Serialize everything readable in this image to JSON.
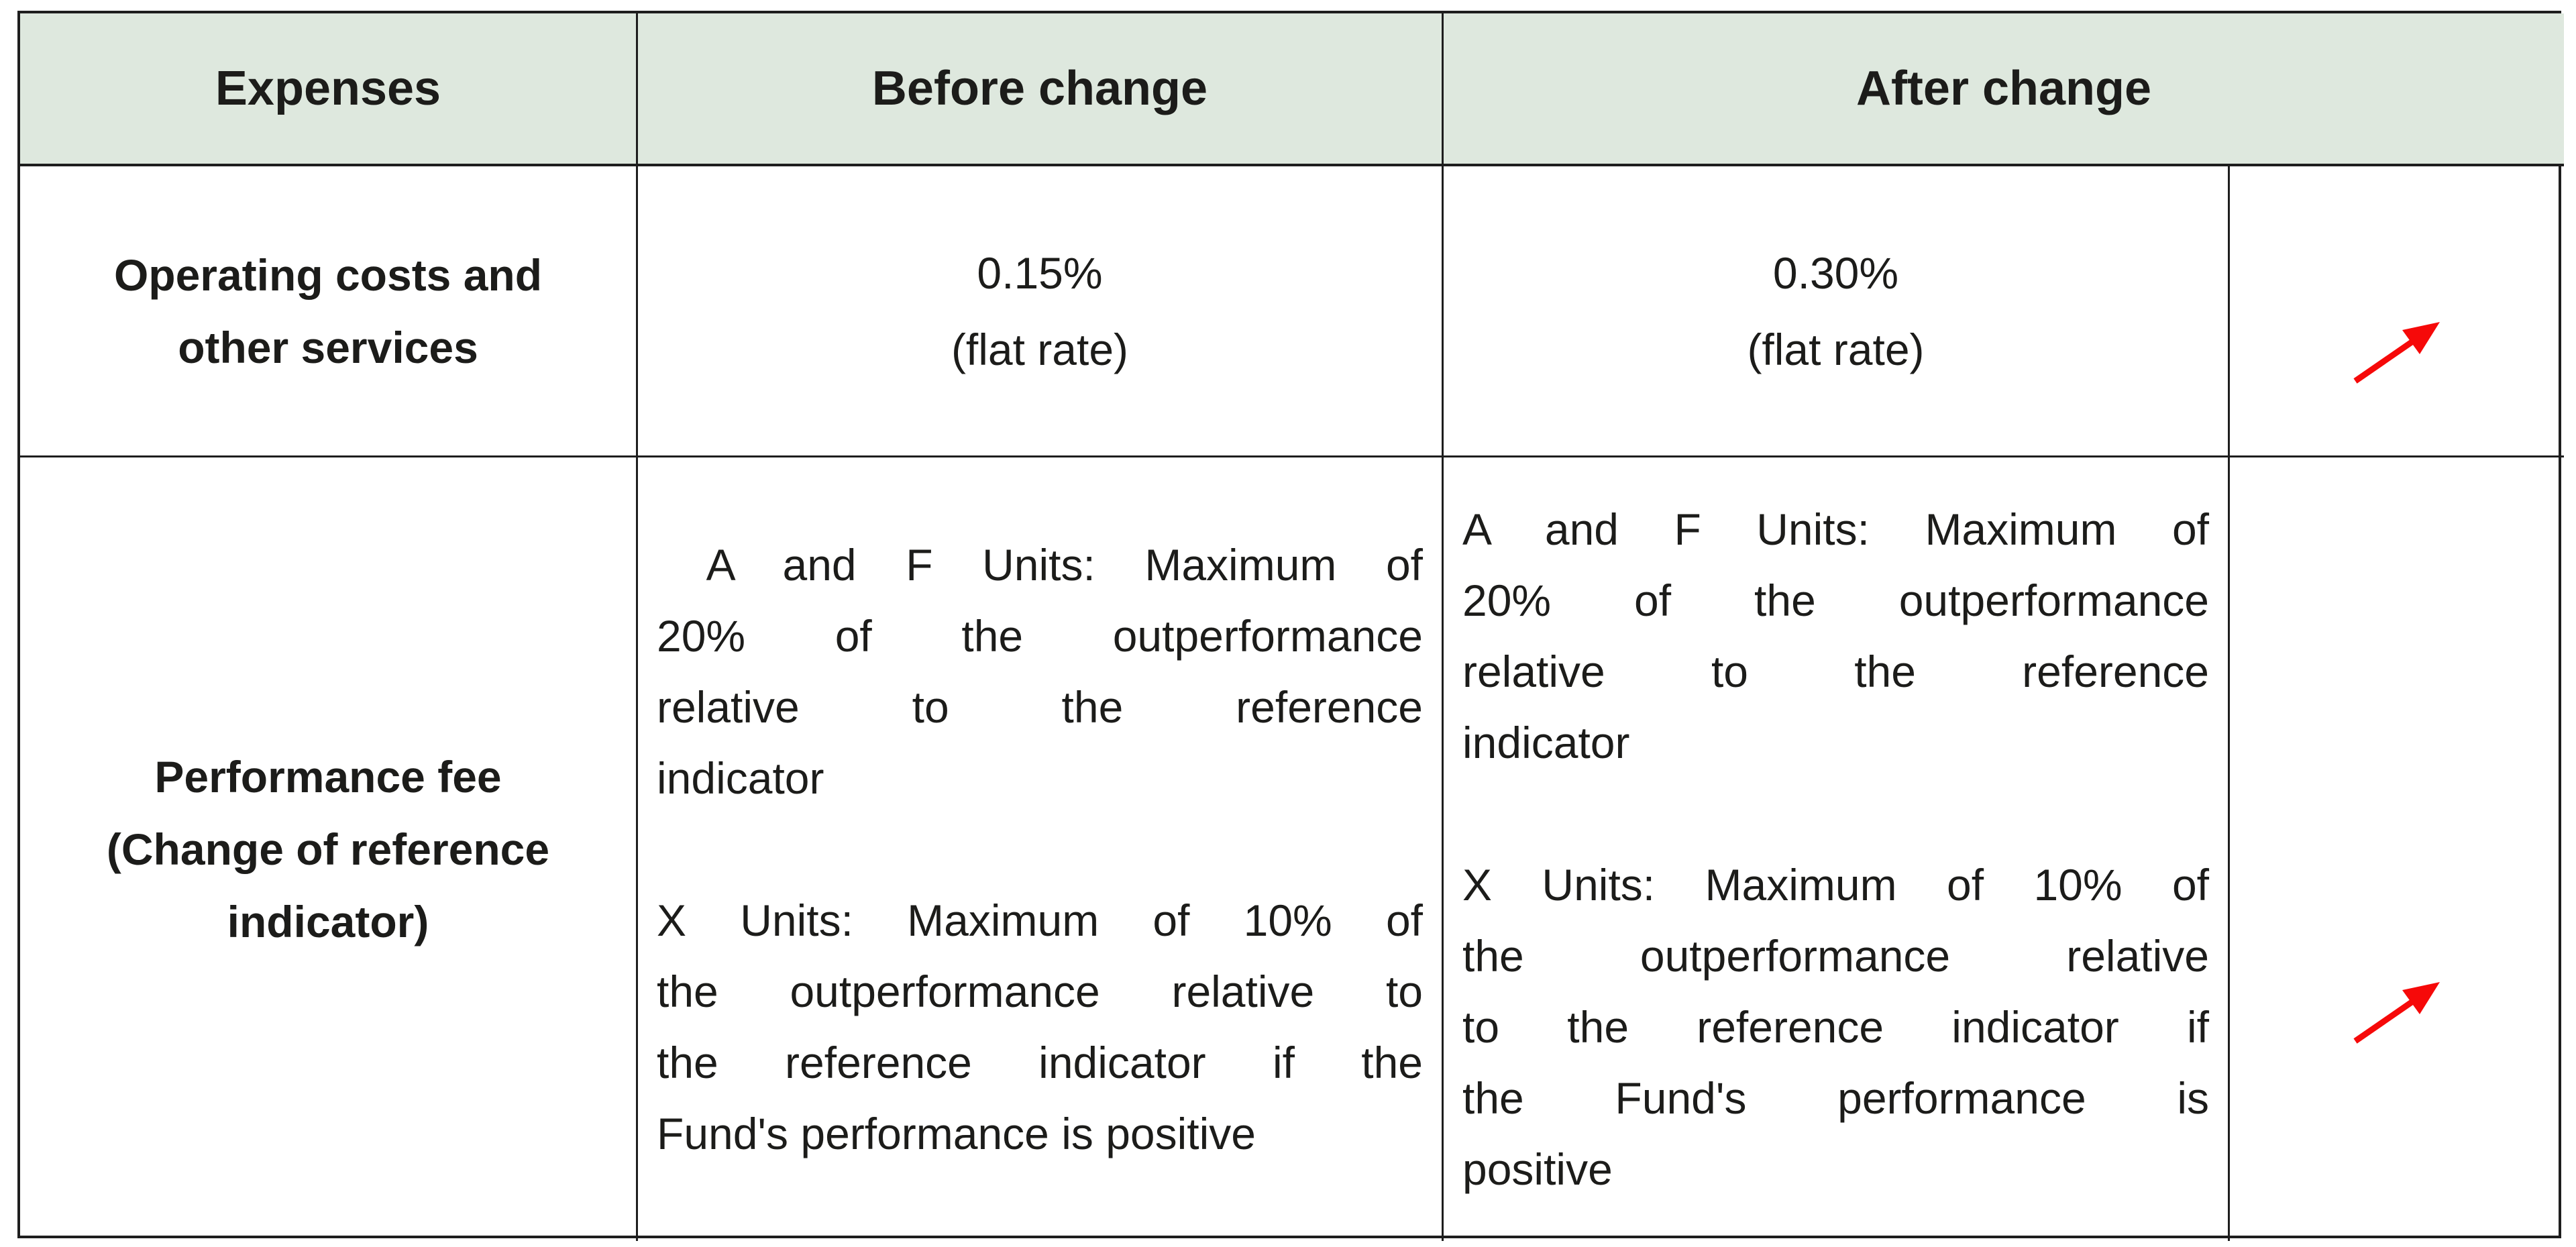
{
  "theme": {
    "header_bg": "#dee8de",
    "border_color": "#1e1e1e",
    "text_color": "#1c1c1a",
    "arrow_color": "#f60909",
    "page_bg": "#ffffff"
  },
  "table": {
    "headers": [
      {
        "id": "expenses",
        "label": "Expenses"
      },
      {
        "id": "before",
        "label": "Before change"
      },
      {
        "id": "after",
        "label": "After change"
      }
    ],
    "rows": [
      {
        "expense_lines": [
          "Operating costs and",
          "other services"
        ],
        "before_lines": [
          "0.15%",
          "(flat rate)"
        ],
        "after_lines": [
          "0.30%",
          "(flat rate)"
        ],
        "change_indicator": "red-arrow-up-right"
      },
      {
        "expense_lines": [
          "Performance fee",
          "(Change of reference",
          "indicator)"
        ],
        "before_paragraphs": [
          [
            " A and F Units: Maximum of",
            "20% of the outperformance",
            "relative to the reference",
            "indicator"
          ],
          [
            "X Units: Maximum of 10% of",
            "the outperformance relative to",
            "the reference indicator if the",
            "Fund's performance is positive"
          ]
        ],
        "after_paragraphs": [
          [
            "A and F Units: Maximum of",
            "20% of the outperformance",
            "relative to the reference",
            "indicator"
          ],
          [
            "X Units: Maximum of 10% of",
            "the outperformance relative",
            "to the reference indicator if",
            "the Fund's performance is",
            "positive"
          ]
        ],
        "change_indicator": "red-arrow-up-right"
      }
    ]
  }
}
